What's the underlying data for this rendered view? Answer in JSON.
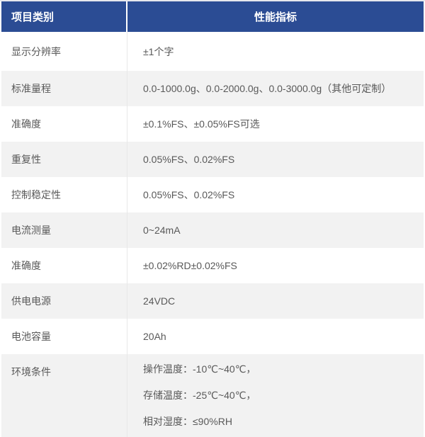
{
  "colors": {
    "header_bg": "#2b4c94",
    "header_text": "#ffffff",
    "stripe_bg": "#f2f2f2",
    "body_text": "#595959",
    "divider": "#e8e8e8"
  },
  "table": {
    "headers": [
      "项目类别",
      "性能指标"
    ],
    "rows": [
      {
        "label": "显示分辨率",
        "values": [
          "±1个字"
        ]
      },
      {
        "label": "标准量程",
        "values": [
          "0.0-1000.0g、0.0-2000.0g、0.0-3000.0g（其他可定制）"
        ]
      },
      {
        "label": "准确度",
        "values": [
          "±0.1%FS、±0.05%FS可选"
        ]
      },
      {
        "label": "重复性",
        "values": [
          "0.05%FS、0.02%FS"
        ]
      },
      {
        "label": "控制稳定性",
        "values": [
          "0.05%FS、0.02%FS"
        ]
      },
      {
        "label": "电流测量",
        "values": [
          "0~24mA"
        ]
      },
      {
        "label": "准确度",
        "values": [
          "±0.02%RD±0.02%FS"
        ]
      },
      {
        "label": "供电电源",
        "values": [
          "24VDC"
        ]
      },
      {
        "label": "电池容量",
        "values": [
          "20Ah"
        ]
      },
      {
        "label": "环境条件",
        "values": [
          "操作温度：-10℃~40℃，",
          "存储温度：-25℃~40℃，",
          "相对湿度：≤90%RH"
        ]
      }
    ]
  }
}
